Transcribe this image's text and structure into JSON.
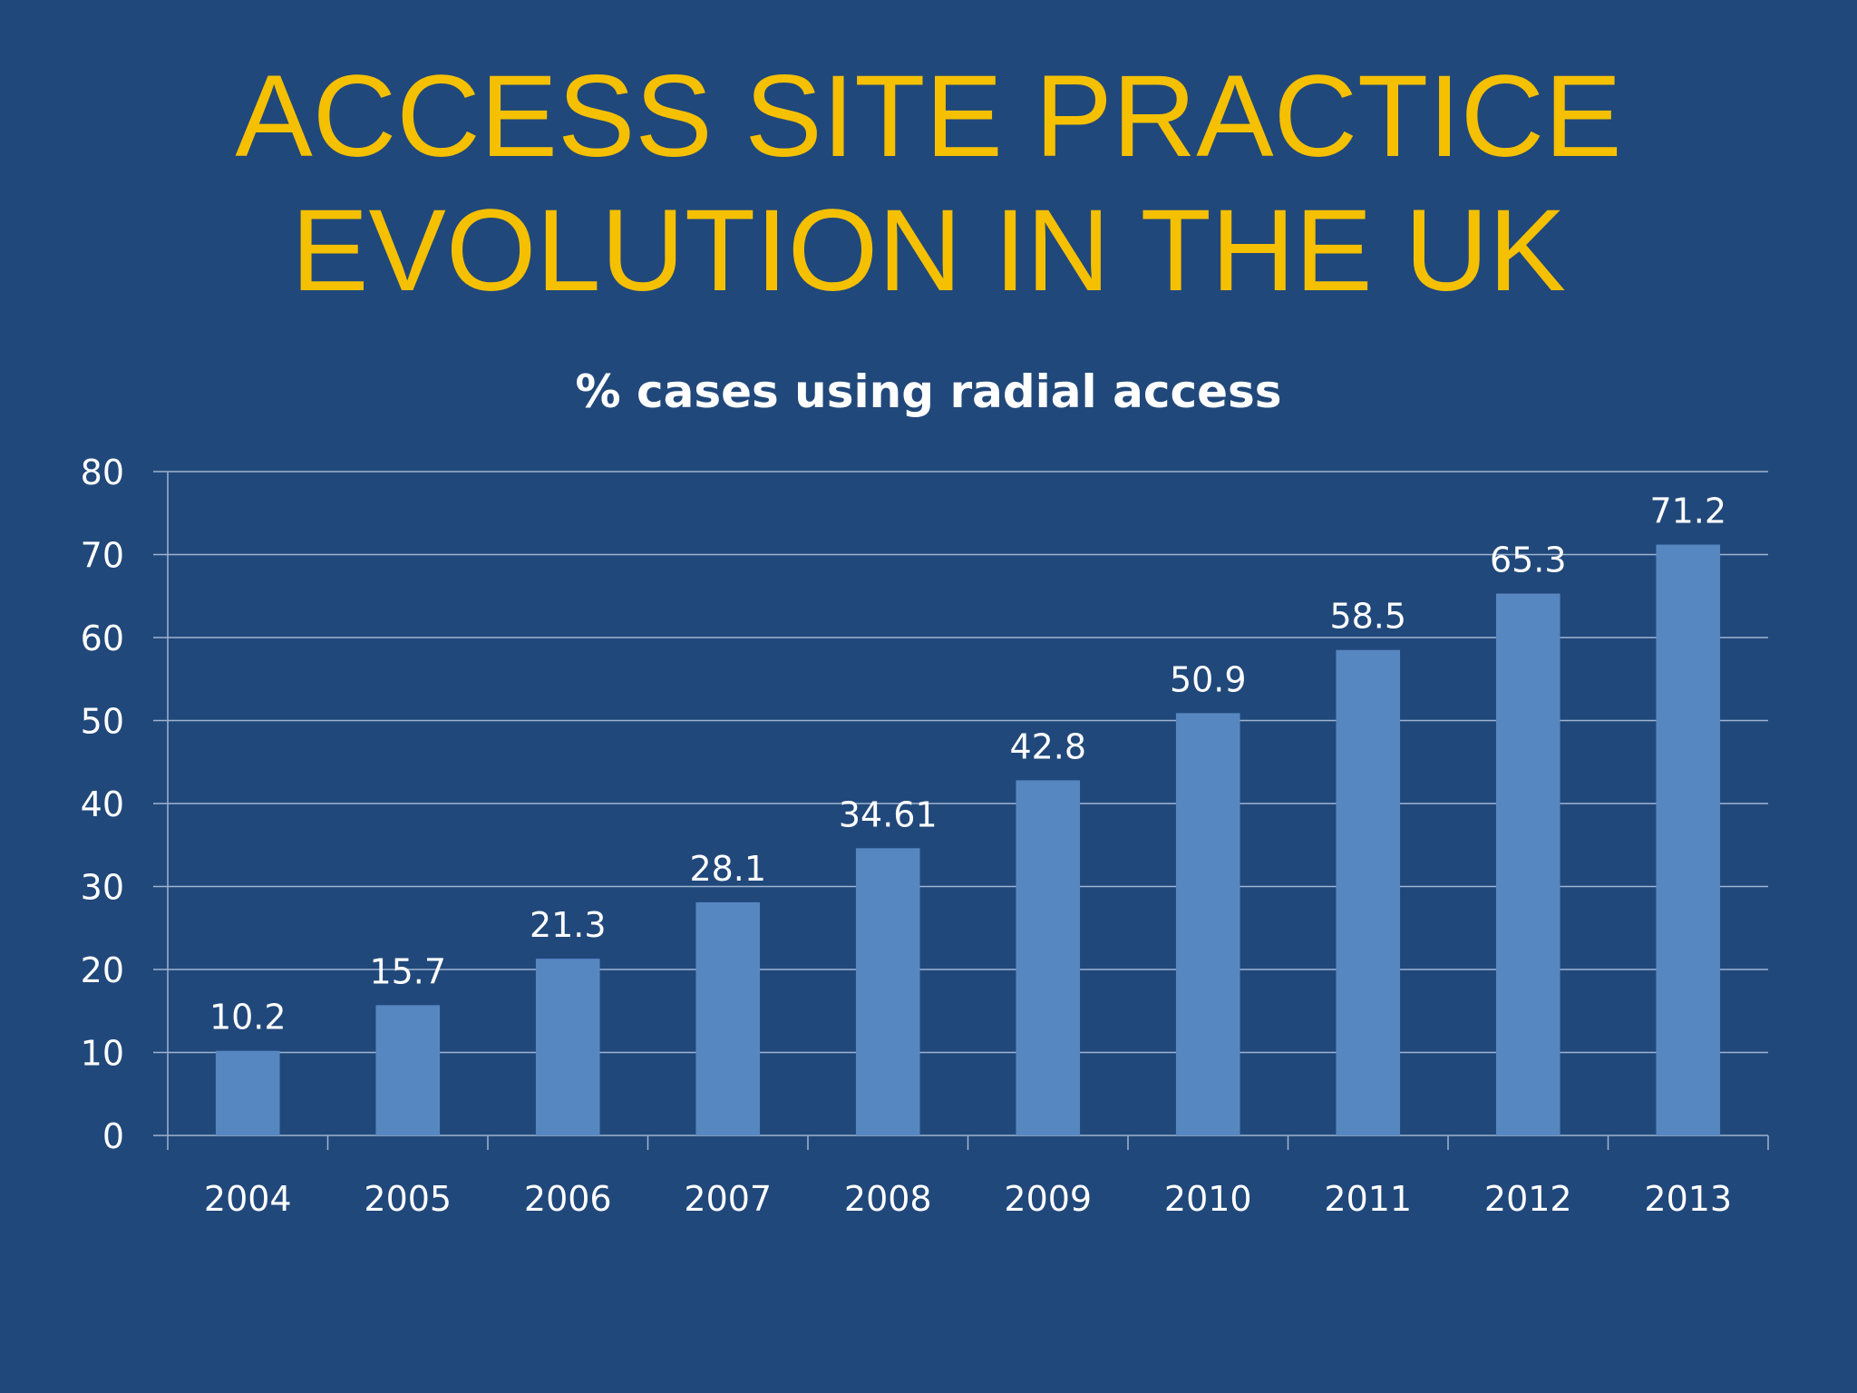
{
  "slide": {
    "title_line1": "ACCESS SITE PRACTICE",
    "title_line2": "EVOLUTION IN THE UK"
  },
  "colors": {
    "background": "#21487a",
    "title": "#f5c000",
    "bar": "#5787c1",
    "text": "#ffffff",
    "grid": "#9fb4cf"
  },
  "chart_data": {
    "type": "bar",
    "title": "% cases using radial access",
    "xlabel": "",
    "ylabel": "",
    "categories": [
      "2004",
      "2005",
      "2006",
      "2007",
      "2008",
      "2009",
      "2010",
      "2011",
      "2012",
      "2013"
    ],
    "values": [
      10.2,
      15.7,
      21.3,
      28.1,
      34.61,
      42.8,
      50.9,
      58.5,
      65.3,
      71.2
    ],
    "value_labels": [
      "10.2",
      "15.7",
      "21.3",
      "28.1",
      "34.61",
      "42.8",
      "50.9",
      "58.5",
      "65.3",
      "71.2"
    ],
    "ylim": [
      0,
      80
    ],
    "yticks": [
      0,
      10,
      20,
      30,
      40,
      50,
      60,
      70,
      80
    ],
    "grid": true,
    "legend": "none"
  }
}
